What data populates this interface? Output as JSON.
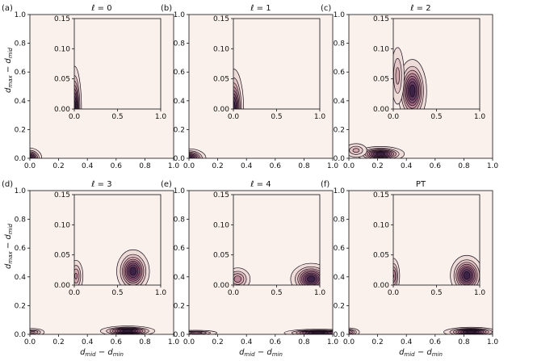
{
  "chart_data": [
    {
      "type": "contour",
      "panel_label": "(a)",
      "title": "ℓ = 0",
      "title_prefix": "ℓ",
      "title_value": "0",
      "xlim": [
        0,
        1
      ],
      "ylim": [
        0,
        1
      ],
      "inset_xlim": [
        0,
        1
      ],
      "inset_ylim": [
        0,
        0.15
      ],
      "blobs": [
        {
          "x": 0.0,
          "y": 0.0,
          "sx": 0.035,
          "sy": 0.03,
          "peak": 1.0
        }
      ]
    },
    {
      "type": "contour",
      "panel_label": "(b)",
      "title": "ℓ = 1",
      "title_prefix": "ℓ",
      "title_value": "1",
      "xlim": [
        0,
        1
      ],
      "ylim": [
        0,
        1
      ],
      "inset_xlim": [
        0,
        1
      ],
      "inset_ylim": [
        0,
        0.15
      ],
      "blobs": [
        {
          "x": 0.0,
          "y": 0.0,
          "sx": 0.05,
          "sy": 0.028,
          "peak": 1.0
        }
      ]
    },
    {
      "type": "contour",
      "panel_label": "(c)",
      "title": "ℓ = 2",
      "title_prefix": "ℓ",
      "title_value": "2",
      "xlim": [
        0,
        1
      ],
      "ylim": [
        0,
        1
      ],
      "inset_xlim": [
        0,
        1
      ],
      "inset_ylim": [
        0,
        0.15
      ],
      "blobs": [
        {
          "x": 0.22,
          "y": 0.03,
          "sx": 0.07,
          "sy": 0.022,
          "peak": 1.0
        },
        {
          "x": 0.05,
          "y": 0.055,
          "sx": 0.04,
          "sy": 0.025,
          "peak": 0.35
        }
      ]
    },
    {
      "type": "contour",
      "panel_label": "(d)",
      "title": "ℓ = 3",
      "title_prefix": "ℓ",
      "title_value": "3",
      "xlim": [
        0,
        1
      ],
      "ylim": [
        0,
        1
      ],
      "inset_xlim": [
        0,
        1
      ],
      "inset_ylim": [
        0,
        0.15
      ],
      "blobs": [
        {
          "x": 0.68,
          "y": 0.023,
          "sx": 0.08,
          "sy": 0.015,
          "peak": 1.0
        },
        {
          "x": 0.02,
          "y": 0.015,
          "sx": 0.04,
          "sy": 0.013,
          "peak": 0.45
        }
      ]
    },
    {
      "type": "contour",
      "panel_label": "(e)",
      "title": "ℓ = 4",
      "title_prefix": "ℓ",
      "title_value": "4",
      "xlim": [
        0,
        1
      ],
      "ylim": [
        0,
        1
      ],
      "inset_xlim": [
        0,
        1
      ],
      "inset_ylim": [
        0,
        0.15
      ],
      "blobs": [
        {
          "x": 0.9,
          "y": 0.01,
          "sx": 0.1,
          "sy": 0.011,
          "peak": 1.0
        },
        {
          "x": 0.05,
          "y": 0.01,
          "sx": 0.07,
          "sy": 0.009,
          "peak": 0.5
        }
      ]
    },
    {
      "type": "contour",
      "panel_label": "(f)",
      "title": "PT",
      "title_prefix": "",
      "title_value": "PT",
      "xlim": [
        0,
        1
      ],
      "ylim": [
        0,
        1
      ],
      "inset_xlim": [
        0,
        1
      ],
      "inset_ylim": [
        0,
        0.15
      ],
      "blobs": [
        {
          "x": 0.85,
          "y": 0.016,
          "sx": 0.08,
          "sy": 0.014,
          "peak": 1.0
        },
        {
          "x": 0.0,
          "y": 0.015,
          "sx": 0.035,
          "sy": 0.014,
          "peak": 0.55
        }
      ]
    }
  ],
  "labels": {
    "ylabel_main": "d",
    "ylabel_sub1": "max",
    "ylabel_mid": " − d",
    "ylabel_sub2": "mid",
    "xlabel_main": "d",
    "xlabel_sub1": "mid",
    "xlabel_mid": " − d",
    "xlabel_sub2": "min"
  },
  "ticks": {
    "main_x": [
      "0.0",
      "0.2",
      "0.4",
      "0.6",
      "0.8",
      "1.0"
    ],
    "main_y": [
      "0.0",
      "0.2",
      "0.4",
      "0.6",
      "0.8",
      "1.0"
    ],
    "inset_x": [
      "0.0",
      "0.5",
      "1.0"
    ],
    "inset_y": [
      "0.00",
      "0.05",
      "0.10",
      "0.15"
    ]
  },
  "colors": {
    "background": "#faf1ec",
    "axis": "#111111",
    "contour_line": "#1a0c1a",
    "light": "#eddad6",
    "dark": "#2a1030"
  }
}
